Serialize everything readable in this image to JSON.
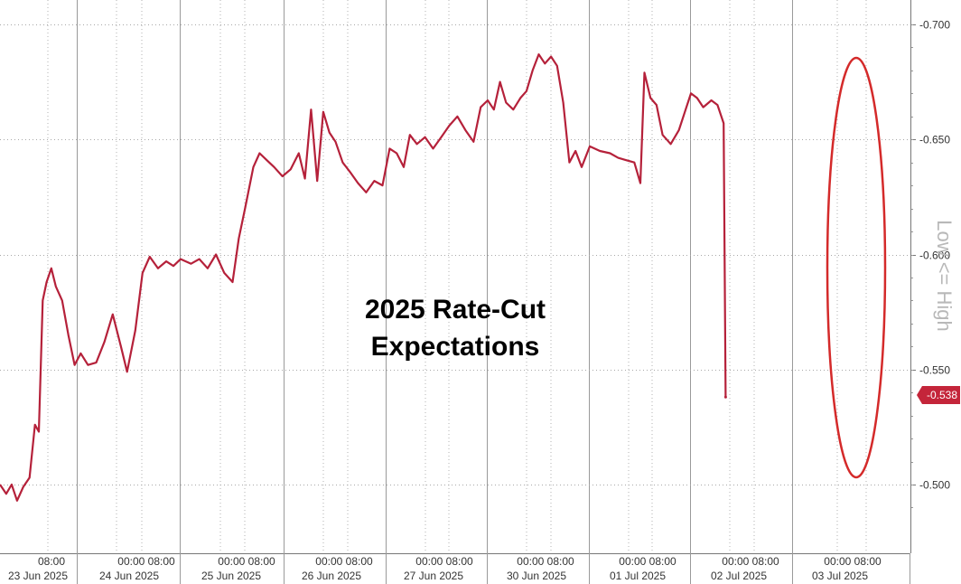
{
  "chart_data": {
    "type": "line",
    "title": "2025 Rate-Cut Expectations",
    "title_lines": [
      "2025 Rate-Cut",
      "Expectations"
    ],
    "ylabel": "Low <= High",
    "ylim": [
      -0.475,
      -0.705
    ],
    "y_inverted": true,
    "y_ticks": [
      -0.7,
      -0.65,
      -0.6,
      -0.55,
      -0.5
    ],
    "y_tick_labels": [
      "-0.700",
      "-0.650",
      "-0.600",
      "-0.550",
      "-0.500"
    ],
    "last_value": -0.538,
    "last_value_label": "-0.538",
    "line_color": "#b5213a",
    "highlight_color": "#d42a2a",
    "grid": true,
    "x_time_labels": [
      {
        "time": "08:00",
        "date": "23 Jun 2025"
      },
      {
        "time": "00:00 08:00",
        "date": "24 Jun 2025"
      },
      {
        "time": "00:00 08:00",
        "date": "25 Jun 2025"
      },
      {
        "time": "00:00 08:00",
        "date": "26 Jun 2025"
      },
      {
        "time": "00:00 08:00",
        "date": "27 Jun 2025"
      },
      {
        "time": "00:00 08:00",
        "date": "30 Jun 2025"
      },
      {
        "time": "00:00 08:00",
        "date": "01 Jul 2025"
      },
      {
        "time": "00:00 08:00",
        "date": "02 Jul 2025"
      },
      {
        "time": "00:00 08:00",
        "date": "03 Jul 2025"
      }
    ],
    "series": [
      {
        "points": [
          [
            0.0,
            -0.5
          ],
          [
            0.08,
            -0.496
          ],
          [
            0.15,
            -0.5
          ],
          [
            0.22,
            -0.493
          ],
          [
            0.3,
            -0.499
          ],
          [
            0.38,
            -0.503
          ],
          [
            0.45,
            -0.526
          ],
          [
            0.5,
            -0.523
          ],
          [
            0.55,
            -0.58
          ],
          [
            0.6,
            -0.588
          ],
          [
            0.66,
            -0.594
          ],
          [
            0.72,
            -0.586
          ],
          [
            0.8,
            -0.58
          ],
          [
            0.88,
            -0.565
          ],
          [
            0.96,
            -0.552
          ],
          [
            1.03,
            -0.557
          ],
          [
            1.1,
            -0.552
          ],
          [
            1.18,
            -0.553
          ],
          [
            1.26,
            -0.562
          ],
          [
            1.34,
            -0.574
          ],
          [
            1.42,
            -0.56
          ],
          [
            1.48,
            -0.549
          ],
          [
            1.56,
            -0.567
          ],
          [
            1.63,
            -0.592
          ],
          [
            1.7,
            -0.599
          ],
          [
            1.78,
            -0.594
          ],
          [
            1.86,
            -0.597
          ],
          [
            1.93,
            -0.595
          ],
          [
            2.0,
            -0.598
          ],
          [
            2.1,
            -0.596
          ],
          [
            2.18,
            -0.598
          ],
          [
            2.26,
            -0.594
          ],
          [
            2.34,
            -0.6
          ],
          [
            2.42,
            -0.592
          ],
          [
            2.5,
            -0.588
          ],
          [
            2.56,
            -0.607
          ],
          [
            2.62,
            -0.62
          ],
          [
            2.7,
            -0.638
          ],
          [
            2.76,
            -0.644
          ],
          [
            2.83,
            -0.641
          ],
          [
            2.9,
            -0.638
          ],
          [
            2.98,
            -0.634
          ],
          [
            3.06,
            -0.637
          ],
          [
            3.14,
            -0.644
          ],
          [
            3.2,
            -0.633
          ],
          [
            3.26,
            -0.663
          ],
          [
            3.32,
            -0.632
          ],
          [
            3.38,
            -0.662
          ],
          [
            3.44,
            -0.653
          ],
          [
            3.5,
            -0.649
          ],
          [
            3.57,
            -0.64
          ],
          [
            3.64,
            -0.636
          ],
          [
            3.72,
            -0.631
          ],
          [
            3.8,
            -0.627
          ],
          [
            3.88,
            -0.632
          ],
          [
            3.96,
            -0.63
          ],
          [
            4.03,
            -0.646
          ],
          [
            4.1,
            -0.644
          ],
          [
            4.17,
            -0.638
          ],
          [
            4.23,
            -0.652
          ],
          [
            4.3,
            -0.648
          ],
          [
            4.38,
            -0.651
          ],
          [
            4.46,
            -0.646
          ],
          [
            4.54,
            -0.651
          ],
          [
            4.62,
            -0.656
          ],
          [
            4.7,
            -0.66
          ],
          [
            4.78,
            -0.654
          ],
          [
            4.86,
            -0.649
          ],
          [
            4.93,
            -0.664
          ],
          [
            5.0,
            -0.667
          ],
          [
            5.06,
            -0.663
          ],
          [
            5.12,
            -0.675
          ],
          [
            5.18,
            -0.666
          ],
          [
            5.25,
            -0.663
          ],
          [
            5.32,
            -0.668
          ],
          [
            5.38,
            -0.671
          ],
          [
            5.44,
            -0.68
          ],
          [
            5.5,
            -0.687
          ],
          [
            5.56,
            -0.683
          ],
          [
            5.62,
            -0.686
          ],
          [
            5.68,
            -0.682
          ],
          [
            5.74,
            -0.666
          ],
          [
            5.8,
            -0.64
          ],
          [
            5.86,
            -0.645
          ],
          [
            5.92,
            -0.638
          ],
          [
            6.0,
            -0.647
          ],
          [
            6.1,
            -0.645
          ],
          [
            6.2,
            -0.644
          ],
          [
            6.28,
            -0.642
          ],
          [
            6.36,
            -0.641
          ],
          [
            6.44,
            -0.64
          ],
          [
            6.5,
            -0.631
          ],
          [
            6.54,
            -0.679
          ],
          [
            6.6,
            -0.668
          ],
          [
            6.66,
            -0.665
          ],
          [
            6.72,
            -0.652
          ],
          [
            6.8,
            -0.648
          ],
          [
            6.88,
            -0.654
          ],
          [
            6.94,
            -0.662
          ],
          [
            7.0,
            -0.67
          ],
          [
            7.06,
            -0.668
          ],
          [
            7.12,
            -0.664
          ],
          [
            7.2,
            -0.667
          ],
          [
            7.26,
            -0.665
          ],
          [
            7.32,
            -0.657
          ],
          [
            7.34,
            -0.538
          ]
        ]
      }
    ]
  }
}
